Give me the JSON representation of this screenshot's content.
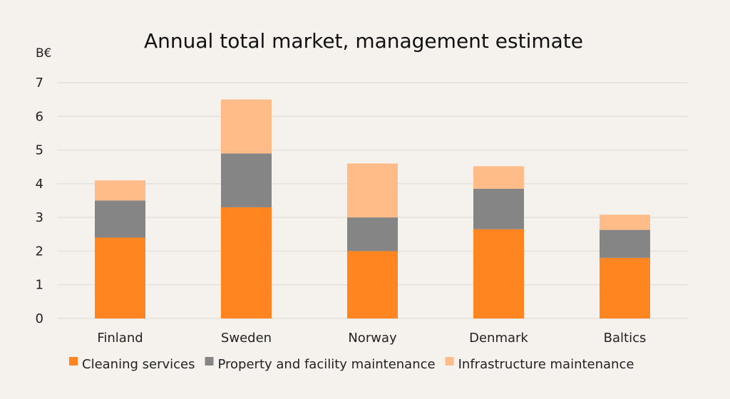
{
  "chart_data": {
    "type": "bar",
    "stacked": true,
    "title": "Annual total market, management estimate",
    "ylabel": "B€",
    "xlabel": "",
    "ylim": [
      0,
      7
    ],
    "yticks": [
      0,
      1,
      2,
      3,
      4,
      5,
      6,
      7
    ],
    "grid": true,
    "legend_position": "bottom",
    "categories": [
      "Finland",
      "Sweden",
      "Norway",
      "Denmark",
      "Baltics"
    ],
    "series": [
      {
        "name": "Cleaning services",
        "color": "#ff8521",
        "values": [
          2.4,
          3.3,
          2.0,
          2.65,
          1.8
        ]
      },
      {
        "name": "Property and facility maintenance",
        "color": "#858585",
        "values": [
          1.1,
          1.6,
          1.0,
          1.2,
          0.83
        ]
      },
      {
        "name": "Infrastructure maintenance",
        "color": "#ffbb88",
        "values": [
          0.6,
          1.6,
          1.6,
          0.67,
          0.45
        ]
      }
    ]
  }
}
